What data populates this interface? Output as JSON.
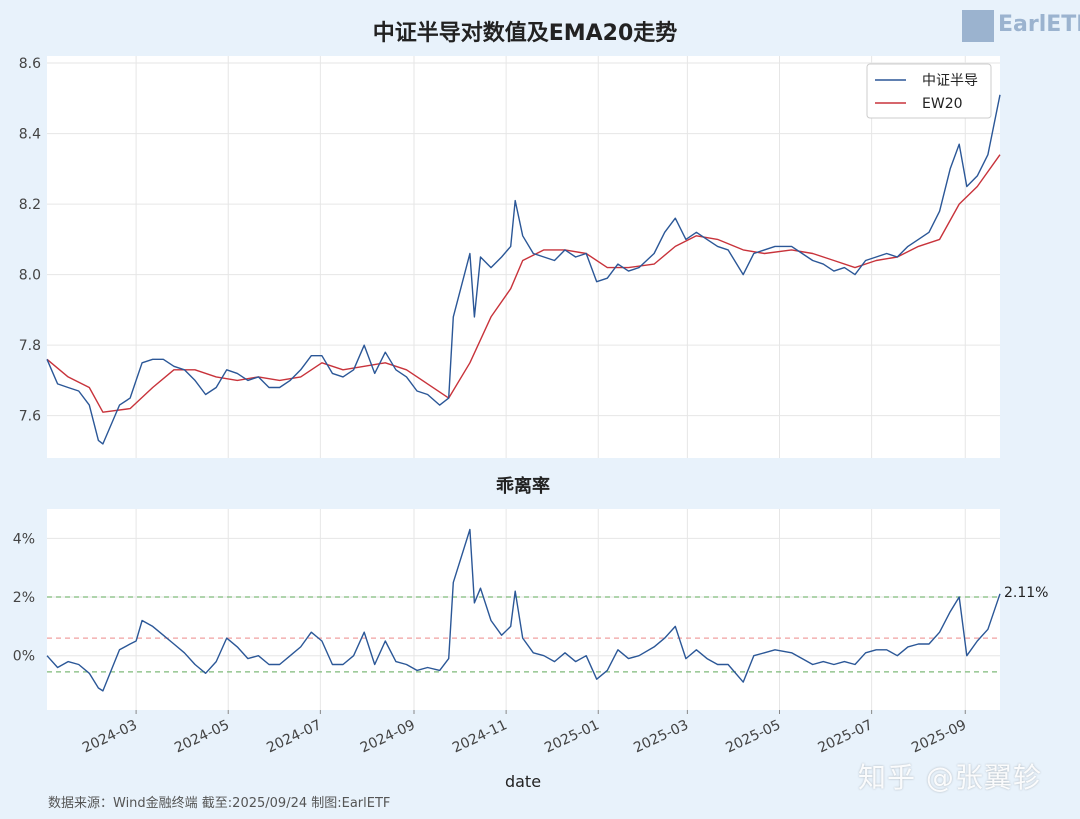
{
  "header": {
    "title": "中证半导对数值及EMA20走势",
    "logo_text": "EarlETF"
  },
  "footer": {
    "source": "数据来源：Wind金融终端 截至:2025/09/24 制图:EarlETF",
    "watermark": "知乎 @张翼轸"
  },
  "colors": {
    "index_line": "#2b5797",
    "ema_line": "#c8333b",
    "upper_band": "#7fba7a",
    "lower_band": "#7fba7a",
    "mean_band": "#f0a0a0"
  },
  "chart_data": [
    {
      "type": "line",
      "title": "",
      "xlabel": "",
      "ylabel": "",
      "ylim": [
        7.48,
        8.62
      ],
      "yticks": [
        7.6,
        7.8,
        8.0,
        8.2,
        8.4,
        8.6
      ],
      "ytick_labels": [
        "7.6",
        "7.8",
        "8.0",
        "8.2",
        "8.4",
        "8.6"
      ],
      "legend_position": "top-right",
      "series": [
        {
          "name": "中证半导",
          "color": "#2b5797",
          "points": [
            [
              "2024-01-02",
              7.76
            ],
            [
              "2024-01-09",
              7.69
            ],
            [
              "2024-01-16",
              7.68
            ],
            [
              "2024-01-23",
              7.67
            ],
            [
              "2024-01-30",
              7.63
            ],
            [
              "2024-02-05",
              7.53
            ],
            [
              "2024-02-08",
              7.52
            ],
            [
              "2024-02-19",
              7.63
            ],
            [
              "2024-02-26",
              7.65
            ],
            [
              "2024-03-01",
              7.7
            ],
            [
              "2024-03-05",
              7.75
            ],
            [
              "2024-03-12",
              7.76
            ],
            [
              "2024-03-19",
              7.76
            ],
            [
              "2024-03-26",
              7.74
            ],
            [
              "2024-04-02",
              7.73
            ],
            [
              "2024-04-09",
              7.7
            ],
            [
              "2024-04-16",
              7.66
            ],
            [
              "2024-04-23",
              7.68
            ],
            [
              "2024-04-30",
              7.73
            ],
            [
              "2024-05-07",
              7.72
            ],
            [
              "2024-05-14",
              7.7
            ],
            [
              "2024-05-21",
              7.71
            ],
            [
              "2024-05-28",
              7.68
            ],
            [
              "2024-06-04",
              7.68
            ],
            [
              "2024-06-11",
              7.7
            ],
            [
              "2024-06-18",
              7.73
            ],
            [
              "2024-06-25",
              7.77
            ],
            [
              "2024-07-02",
              7.77
            ],
            [
              "2024-07-09",
              7.72
            ],
            [
              "2024-07-16",
              7.71
            ],
            [
              "2024-07-23",
              7.73
            ],
            [
              "2024-07-30",
              7.8
            ],
            [
              "2024-08-06",
              7.72
            ],
            [
              "2024-08-13",
              7.78
            ],
            [
              "2024-08-20",
              7.73
            ],
            [
              "2024-08-27",
              7.71
            ],
            [
              "2024-09-03",
              7.67
            ],
            [
              "2024-09-10",
              7.66
            ],
            [
              "2024-09-18",
              7.63
            ],
            [
              "2024-09-24",
              7.65
            ],
            [
              "2024-09-27",
              7.88
            ],
            [
              "2024-10-08",
              8.06
            ],
            [
              "2024-10-11",
              7.88
            ],
            [
              "2024-10-15",
              8.05
            ],
            [
              "2024-10-22",
              8.02
            ],
            [
              "2024-10-29",
              8.05
            ],
            [
              "2024-11-04",
              8.08
            ],
            [
              "2024-11-07",
              8.21
            ],
            [
              "2024-11-12",
              8.11
            ],
            [
              "2024-11-19",
              8.06
            ],
            [
              "2024-11-26",
              8.05
            ],
            [
              "2024-12-03",
              8.04
            ],
            [
              "2024-12-10",
              8.07
            ],
            [
              "2024-12-17",
              8.05
            ],
            [
              "2024-12-24",
              8.06
            ],
            [
              "2024-12-31",
              7.98
            ],
            [
              "2025-01-07",
              7.99
            ],
            [
              "2025-01-14",
              8.03
            ],
            [
              "2025-01-21",
              8.01
            ],
            [
              "2025-01-28",
              8.02
            ],
            [
              "2025-02-07",
              8.06
            ],
            [
              "2025-02-14",
              8.12
            ],
            [
              "2025-02-21",
              8.16
            ],
            [
              "2025-02-28",
              8.1
            ],
            [
              "2025-03-07",
              8.12
            ],
            [
              "2025-03-14",
              8.1
            ],
            [
              "2025-03-21",
              8.08
            ],
            [
              "2025-03-28",
              8.07
            ],
            [
              "2025-04-07",
              8.0
            ],
            [
              "2025-04-14",
              8.06
            ],
            [
              "2025-04-21",
              8.07
            ],
            [
              "2025-04-28",
              8.08
            ],
            [
              "2025-05-09",
              8.08
            ],
            [
              "2025-05-16",
              8.06
            ],
            [
              "2025-05-23",
              8.04
            ],
            [
              "2025-05-30",
              8.03
            ],
            [
              "2025-06-06",
              8.01
            ],
            [
              "2025-06-13",
              8.02
            ],
            [
              "2025-06-20",
              8.0
            ],
            [
              "2025-06-27",
              8.04
            ],
            [
              "2025-07-04",
              8.05
            ],
            [
              "2025-07-11",
              8.06
            ],
            [
              "2025-07-18",
              8.05
            ],
            [
              "2025-07-25",
              8.08
            ],
            [
              "2025-08-01",
              8.1
            ],
            [
              "2025-08-08",
              8.12
            ],
            [
              "2025-08-15",
              8.18
            ],
            [
              "2025-08-22",
              8.3
            ],
            [
              "2025-08-28",
              8.37
            ],
            [
              "2025-09-02",
              8.25
            ],
            [
              "2025-09-09",
              8.28
            ],
            [
              "2025-09-16",
              8.34
            ],
            [
              "2025-09-24",
              8.51
            ]
          ]
        },
        {
          "name": "EW20",
          "color": "#c8333b",
          "points": [
            [
              "2024-01-02",
              7.76
            ],
            [
              "2024-01-16",
              7.71
            ],
            [
              "2024-01-30",
              7.68
            ],
            [
              "2024-02-08",
              7.61
            ],
            [
              "2024-02-26",
              7.62
            ],
            [
              "2024-03-12",
              7.68
            ],
            [
              "2024-03-26",
              7.73
            ],
            [
              "2024-04-09",
              7.73
            ],
            [
              "2024-04-23",
              7.71
            ],
            [
              "2024-05-07",
              7.7
            ],
            [
              "2024-05-21",
              7.71
            ],
            [
              "2024-06-04",
              7.7
            ],
            [
              "2024-06-18",
              7.71
            ],
            [
              "2024-07-02",
              7.75
            ],
            [
              "2024-07-16",
              7.73
            ],
            [
              "2024-07-30",
              7.74
            ],
            [
              "2024-08-13",
              7.75
            ],
            [
              "2024-08-27",
              7.73
            ],
            [
              "2024-09-10",
              7.69
            ],
            [
              "2024-09-24",
              7.65
            ],
            [
              "2024-10-08",
              7.75
            ],
            [
              "2024-10-22",
              7.88
            ],
            [
              "2024-11-04",
              7.96
            ],
            [
              "2024-11-12",
              8.04
            ],
            [
              "2024-11-26",
              8.07
            ],
            [
              "2024-12-10",
              8.07
            ],
            [
              "2024-12-24",
              8.06
            ],
            [
              "2025-01-07",
              8.02
            ],
            [
              "2025-01-21",
              8.02
            ],
            [
              "2025-02-07",
              8.03
            ],
            [
              "2025-02-21",
              8.08
            ],
            [
              "2025-03-07",
              8.11
            ],
            [
              "2025-03-21",
              8.1
            ],
            [
              "2025-04-07",
              8.07
            ],
            [
              "2025-04-21",
              8.06
            ],
            [
              "2025-05-09",
              8.07
            ],
            [
              "2025-05-23",
              8.06
            ],
            [
              "2025-06-06",
              8.04
            ],
            [
              "2025-06-20",
              8.02
            ],
            [
              "2025-07-04",
              8.04
            ],
            [
              "2025-07-18",
              8.05
            ],
            [
              "2025-08-01",
              8.08
            ],
            [
              "2025-08-15",
              8.1
            ],
            [
              "2025-08-28",
              8.2
            ],
            [
              "2025-09-09",
              8.25
            ],
            [
              "2025-09-24",
              8.34
            ]
          ]
        }
      ]
    },
    {
      "type": "line",
      "title": "乖离率",
      "xlabel": "date",
      "ylabel": "",
      "ylim": [
        -1.85,
        5.0
      ],
      "yticks": [
        0,
        2,
        4
      ],
      "ytick_labels": [
        "0%",
        "2%",
        "4%"
      ],
      "xlim": [
        "2024-01-02",
        "2025-09-24"
      ],
      "xticks": [
        "2024-03-01",
        "2024-05-01",
        "2024-07-01",
        "2024-09-01",
        "2024-11-01",
        "2025-01-01",
        "2025-03-01",
        "2025-05-01",
        "2025-07-01",
        "2025-09-01"
      ],
      "xtick_labels": [
        "2024-03",
        "2024-05",
        "2024-07",
        "2024-09",
        "2024-11",
        "2025-01",
        "2025-03",
        "2025-05",
        "2025-07",
        "2025-09"
      ],
      "reference_lines": [
        {
          "name": "upper",
          "value": 2.0,
          "color": "#7fba7a"
        },
        {
          "name": "mean",
          "value": 0.6,
          "color": "#f0a0a0"
        },
        {
          "name": "lower",
          "value": -0.55,
          "color": "#7fba7a"
        }
      ],
      "last_value_label": "2.11%",
      "series": [
        {
          "name": "乖离率",
          "color": "#2b5797",
          "points": [
            [
              "2024-01-02",
              0.0
            ],
            [
              "2024-01-09",
              -0.4
            ],
            [
              "2024-01-16",
              -0.2
            ],
            [
              "2024-01-23",
              -0.3
            ],
            [
              "2024-01-30",
              -0.6
            ],
            [
              "2024-02-05",
              -1.1
            ],
            [
              "2024-02-08",
              -1.2
            ],
            [
              "2024-02-19",
              0.2
            ],
            [
              "2024-02-26",
              0.4
            ],
            [
              "2024-03-01",
              0.5
            ],
            [
              "2024-03-05",
              1.2
            ],
            [
              "2024-03-12",
              1.0
            ],
            [
              "2024-03-19",
              0.7
            ],
            [
              "2024-03-26",
              0.4
            ],
            [
              "2024-04-02",
              0.1
            ],
            [
              "2024-04-09",
              -0.3
            ],
            [
              "2024-04-16",
              -0.6
            ],
            [
              "2024-04-23",
              -0.2
            ],
            [
              "2024-04-30",
              0.6
            ],
            [
              "2024-05-07",
              0.3
            ],
            [
              "2024-05-14",
              -0.1
            ],
            [
              "2024-05-21",
              0.0
            ],
            [
              "2024-05-28",
              -0.3
            ],
            [
              "2024-06-04",
              -0.3
            ],
            [
              "2024-06-11",
              0.0
            ],
            [
              "2024-06-18",
              0.3
            ],
            [
              "2024-06-25",
              0.8
            ],
            [
              "2024-07-02",
              0.5
            ],
            [
              "2024-07-09",
              -0.3
            ],
            [
              "2024-07-16",
              -0.3
            ],
            [
              "2024-07-23",
              0.0
            ],
            [
              "2024-07-30",
              0.8
            ],
            [
              "2024-08-06",
              -0.3
            ],
            [
              "2024-08-13",
              0.5
            ],
            [
              "2024-08-20",
              -0.2
            ],
            [
              "2024-08-27",
              -0.3
            ],
            [
              "2024-09-03",
              -0.5
            ],
            [
              "2024-09-10",
              -0.4
            ],
            [
              "2024-09-18",
              -0.5
            ],
            [
              "2024-09-24",
              -0.1
            ],
            [
              "2024-09-27",
              2.5
            ],
            [
              "2024-10-08",
              4.3
            ],
            [
              "2024-10-11",
              1.8
            ],
            [
              "2024-10-15",
              2.3
            ],
            [
              "2024-10-22",
              1.2
            ],
            [
              "2024-10-29",
              0.7
            ],
            [
              "2024-11-04",
              1.0
            ],
            [
              "2024-11-07",
              2.2
            ],
            [
              "2024-11-12",
              0.6
            ],
            [
              "2024-11-19",
              0.1
            ],
            [
              "2024-11-26",
              0.0
            ],
            [
              "2024-12-03",
              -0.2
            ],
            [
              "2024-12-10",
              0.1
            ],
            [
              "2024-12-17",
              -0.2
            ],
            [
              "2024-12-24",
              0.0
            ],
            [
              "2024-12-31",
              -0.8
            ],
            [
              "2025-01-07",
              -0.5
            ],
            [
              "2025-01-14",
              0.2
            ],
            [
              "2025-01-21",
              -0.1
            ],
            [
              "2025-01-28",
              0.0
            ],
            [
              "2025-02-07",
              0.3
            ],
            [
              "2025-02-14",
              0.6
            ],
            [
              "2025-02-21",
              1.0
            ],
            [
              "2025-02-28",
              -0.1
            ],
            [
              "2025-03-07",
              0.2
            ],
            [
              "2025-03-14",
              -0.1
            ],
            [
              "2025-03-21",
              -0.3
            ],
            [
              "2025-03-28",
              -0.3
            ],
            [
              "2025-04-07",
              -0.9
            ],
            [
              "2025-04-14",
              0.0
            ],
            [
              "2025-04-21",
              0.1
            ],
            [
              "2025-04-28",
              0.2
            ],
            [
              "2025-05-09",
              0.1
            ],
            [
              "2025-05-16",
              -0.1
            ],
            [
              "2025-05-23",
              -0.3
            ],
            [
              "2025-05-30",
              -0.2
            ],
            [
              "2025-06-06",
              -0.3
            ],
            [
              "2025-06-13",
              -0.2
            ],
            [
              "2025-06-20",
              -0.3
            ],
            [
              "2025-06-27",
              0.1
            ],
            [
              "2025-07-04",
              0.2
            ],
            [
              "2025-07-11",
              0.2
            ],
            [
              "2025-07-18",
              0.0
            ],
            [
              "2025-07-25",
              0.3
            ],
            [
              "2025-08-01",
              0.4
            ],
            [
              "2025-08-08",
              0.4
            ],
            [
              "2025-08-15",
              0.8
            ],
            [
              "2025-08-22",
              1.5
            ],
            [
              "2025-08-28",
              2.0
            ],
            [
              "2025-09-02",
              0.0
            ],
            [
              "2025-09-09",
              0.5
            ],
            [
              "2025-09-16",
              0.9
            ],
            [
              "2025-09-24",
              2.11
            ]
          ]
        }
      ]
    }
  ]
}
